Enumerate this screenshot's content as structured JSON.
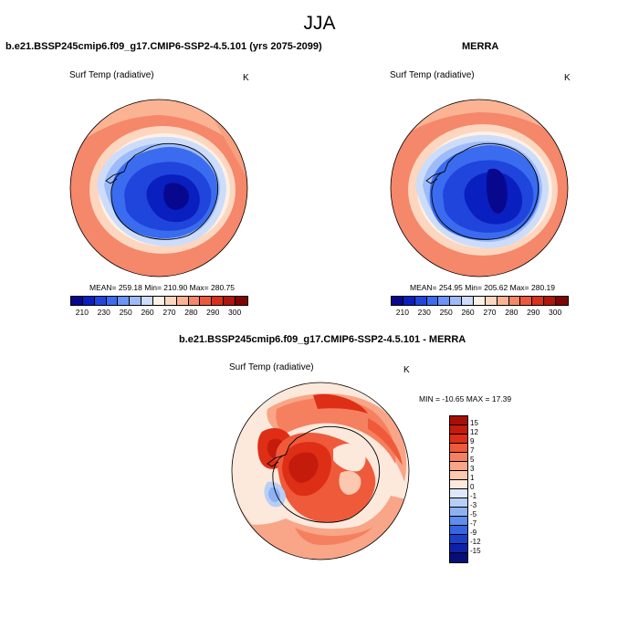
{
  "figure": {
    "season": "JJA"
  },
  "panels": {
    "model": {
      "title": "b.e21.BSSP245cmip6.f09_g17.CMIP6-SSP2-4.5.101 (yrs 2075-2099)",
      "variable": "Surf Temp (radiative)",
      "units": "K",
      "stats": "MEAN= 259.18  Min= 210.90  Max= 280.75",
      "mean": 259.18,
      "min": 210.9,
      "max": 280.75
    },
    "obs": {
      "title": "MERRA",
      "variable": "Surf Temp (radiative)",
      "units": "K",
      "stats": "MEAN= 254.95  Min= 205.62  Max= 280.19",
      "mean": 254.95,
      "min": 205.62,
      "max": 280.19
    },
    "diff": {
      "title": "b.e21.BSSP245cmip6.f09_g17.CMIP6-SSP2-4.5.101 - MERRA",
      "variable": "Surf Temp (radiative)",
      "units": "K",
      "stats": "MIN = -10.65 MAX =  17.39",
      "min": -10.65,
      "max": 17.39
    }
  },
  "colorbars": {
    "abs": {
      "tick_labels": [
        "210",
        "230",
        "250",
        "260",
        "270",
        "280",
        "290",
        "300"
      ],
      "colors": [
        "#08088f",
        "#0a1fbf",
        "#1f45dd",
        "#3b6cef",
        "#6a94f5",
        "#9dbbf8",
        "#cddcf9",
        "#fdf1e6",
        "#fdd6bf",
        "#fbb394",
        "#f5876a",
        "#ec5a3c",
        "#d8301a",
        "#b01609",
        "#7e0503"
      ]
    },
    "diff": {
      "tick_labels": [
        "15",
        "12",
        "9",
        "7",
        "5",
        "3",
        "1",
        "0",
        "-1",
        "-3",
        "-5",
        "-7",
        "-9",
        "-12",
        "-15"
      ],
      "colors": [
        "#a50f05",
        "#c41b0c",
        "#de2e16",
        "#ee5a3a",
        "#f5805f",
        "#f9a587",
        "#fcc8b0",
        "#fde8dc",
        "#dce8fa",
        "#b7cef6",
        "#8eb1f2",
        "#5f8ced",
        "#3565e0",
        "#1c3fca",
        "#0d22a8",
        "#060f78"
      ]
    }
  }
}
